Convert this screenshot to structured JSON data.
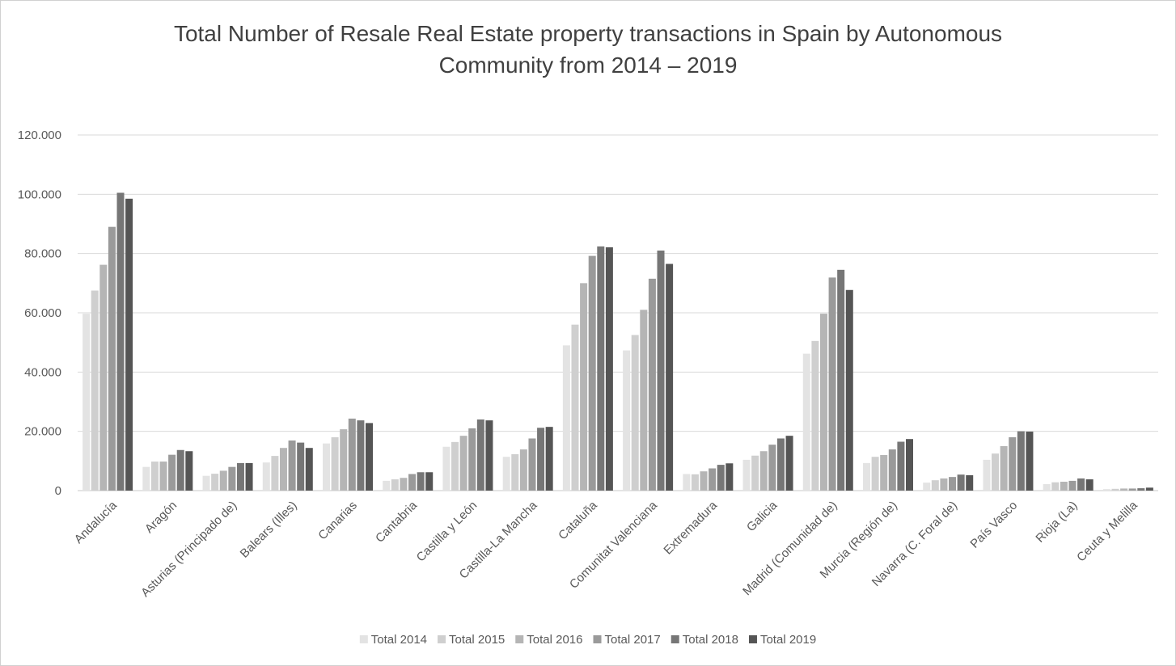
{
  "chart_data": {
    "type": "bar",
    "title": "Total Number of Resale Real Estate property transactions in Spain by Autonomous Community from 2014 – 2019",
    "title_lines": [
      "Total Number of Resale Real Estate property transactions in Spain by Autonomous",
      "Community from 2014 – 2019"
    ],
    "xlabel": "",
    "ylabel": "",
    "ylim": [
      0,
      120000
    ],
    "yticks": [
      0,
      20000,
      40000,
      60000,
      80000,
      100000,
      120000
    ],
    "ytick_labels": [
      "0",
      "20.000",
      "40.000",
      "60.000",
      "80.000",
      "100.000",
      "120.000"
    ],
    "grid": true,
    "legend_position": "bottom",
    "categories": [
      "Andalucía",
      "Aragón",
      "Asturias (Principado de)",
      "Balears (Illes)",
      "Canarias",
      "Cantabria",
      "Castilla y León",
      "Castilla-La Mancha",
      "Cataluña",
      "Comunitat Valenciana",
      "Extremadura",
      "Galicia",
      "Madrid (Comunidad de)",
      "Murcia (Región de)",
      "Navarra (C. Foral de)",
      "País Vasco",
      "Rioja (La)",
      "Ceuta y Melilla"
    ],
    "series": [
      {
        "name": "Total 2014",
        "color": "#e3e3e3",
        "values": [
          59700,
          8000,
          5000,
          9500,
          15900,
          3300,
          14800,
          11400,
          49000,
          47300,
          5600,
          10400,
          46200,
          9300,
          2700,
          10400,
          2200,
          500
        ]
      },
      {
        "name": "Total 2015",
        "color": "#cfcfcf",
        "values": [
          67500,
          9800,
          5700,
          11700,
          18000,
          3800,
          16400,
          12300,
          56000,
          52500,
          5500,
          11800,
          50500,
          11400,
          3500,
          12500,
          2800,
          600
        ]
      },
      {
        "name": "Total 2016",
        "color": "#b5b5b5",
        "values": [
          76200,
          9800,
          6700,
          14400,
          20700,
          4300,
          18500,
          13900,
          70000,
          61000,
          6500,
          13300,
          59700,
          12000,
          4100,
          15000,
          3000,
          700
        ]
      },
      {
        "name": "Total 2017",
        "color": "#9a9a9a",
        "values": [
          89000,
          12100,
          8000,
          16900,
          24300,
          5600,
          21000,
          17600,
          79200,
          71500,
          7500,
          15500,
          71900,
          13900,
          4600,
          18000,
          3300,
          700
        ]
      },
      {
        "name": "Total 2018",
        "color": "#767676",
        "values": [
          100500,
          13700,
          9300,
          16200,
          23700,
          6200,
          24000,
          21200,
          82400,
          81000,
          8700,
          17600,
          74500,
          16500,
          5400,
          20000,
          4100,
          800
        ]
      },
      {
        "name": "Total 2019",
        "color": "#555555",
        "values": [
          98500,
          13300,
          9300,
          14400,
          22800,
          6200,
          23700,
          21500,
          82100,
          76500,
          9200,
          18500,
          67700,
          17400,
          5200,
          19900,
          3800,
          1000
        ]
      }
    ]
  }
}
